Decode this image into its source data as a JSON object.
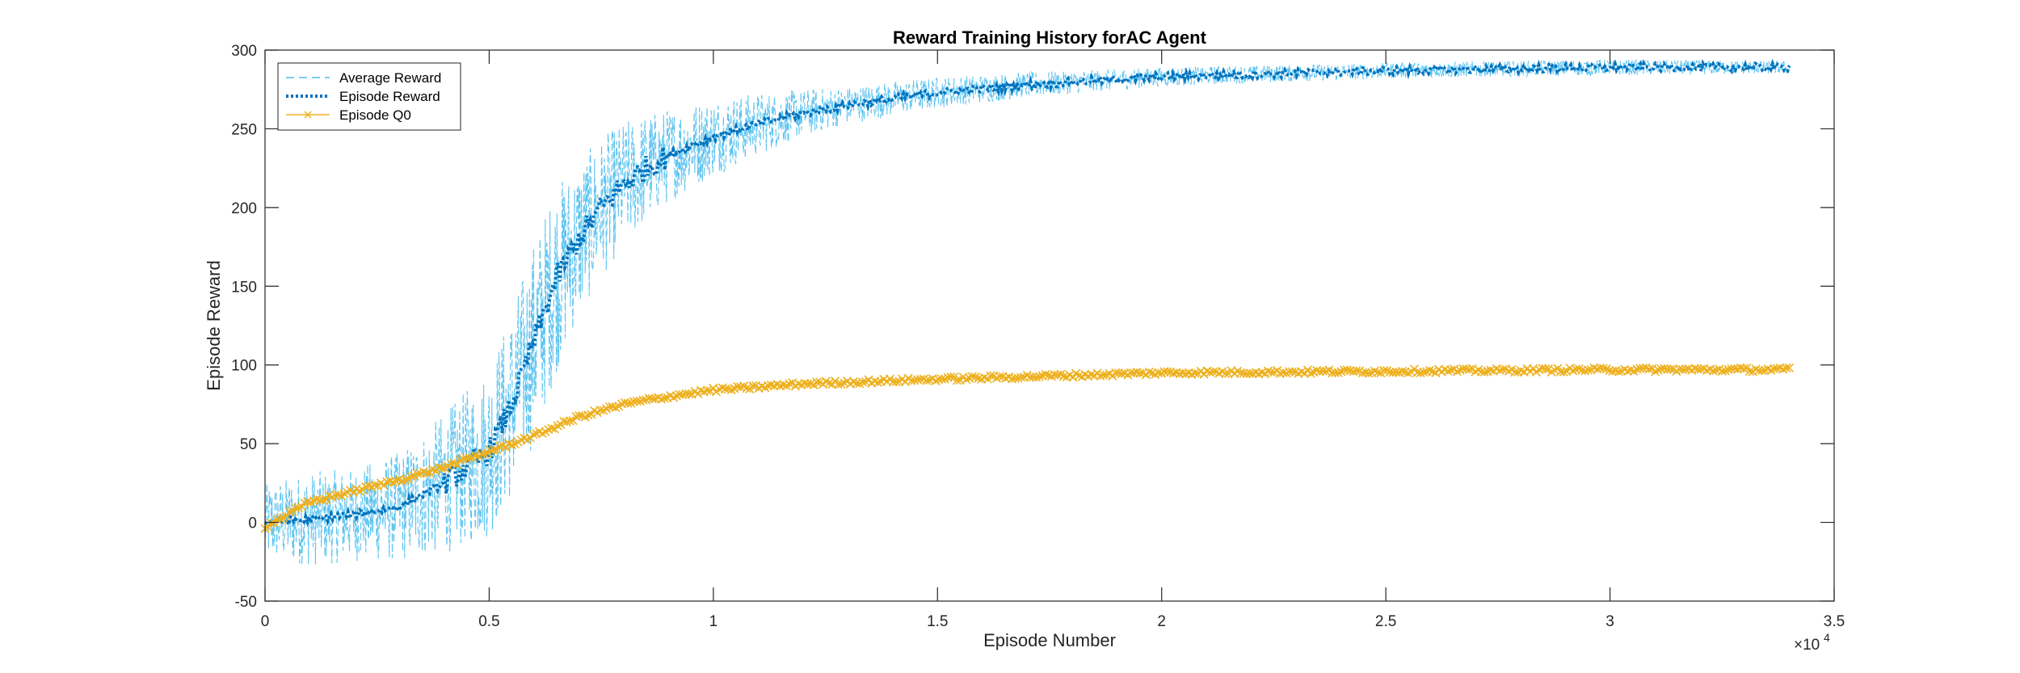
{
  "chart_data": {
    "type": "line",
    "title": "Reward Training History forAC Agent",
    "xlabel": "Episode Number",
    "ylabel": "Episode Reward",
    "x_exponent_label": "×10",
    "x_exponent_power": "4",
    "xlim": [
      0,
      35000
    ],
    "ylim": [
      -50,
      300
    ],
    "xticks": [
      0,
      5000,
      10000,
      15000,
      20000,
      25000,
      30000,
      35000
    ],
    "xtick_labels": [
      "0",
      "0.5",
      "1",
      "1.5",
      "2",
      "2.5",
      "3",
      "3.5"
    ],
    "yticks": [
      -50,
      0,
      50,
      100,
      150,
      200,
      250,
      300
    ],
    "ytick_labels": [
      "-50",
      "0",
      "50",
      "100",
      "150",
      "200",
      "250",
      "300"
    ],
    "grid": false,
    "legend_position": "top-left",
    "series": [
      {
        "name": "Average Reward",
        "color": "#4DBEEE",
        "style": "dashed",
        "x": [
          0,
          1000,
          2000,
          3000,
          4000,
          5000,
          5500,
          6000,
          6500,
          7000,
          7500,
          8000,
          8500,
          9000,
          10000,
          11000,
          12000,
          13000,
          15000,
          17000,
          20000,
          25000,
          30000,
          34000
        ],
        "values": [
          0,
          2,
          5,
          10,
          25,
          45,
          75,
          115,
          155,
          180,
          200,
          215,
          225,
          233,
          245,
          253,
          260,
          265,
          273,
          278,
          283,
          287,
          289,
          289
        ],
        "noise_amplitude": [
          25,
          30,
          30,
          35,
          45,
          55,
          60,
          65,
          60,
          50,
          45,
          40,
          35,
          30,
          25,
          20,
          15,
          12,
          10,
          8,
          6,
          5,
          5,
          4
        ]
      },
      {
        "name": "Episode Reward",
        "color": "#0072BD",
        "style": "dotted",
        "x": [
          0,
          1000,
          2000,
          3000,
          4000,
          5000,
          5500,
          6000,
          6500,
          7000,
          7500,
          8000,
          8500,
          9000,
          10000,
          11000,
          12000,
          13000,
          15000,
          17000,
          20000,
          25000,
          30000,
          34000
        ],
        "values": [
          0,
          2,
          5,
          10,
          25,
          45,
          75,
          115,
          155,
          180,
          200,
          215,
          225,
          233,
          245,
          253,
          260,
          265,
          273,
          278,
          283,
          287,
          289,
          289
        ]
      },
      {
        "name": "Episode Q0",
        "color": "#EDB120",
        "style": "solid-x",
        "x": [
          0,
          500,
          1000,
          2000,
          3000,
          4000,
          5000,
          6000,
          7000,
          8000,
          9000,
          10000,
          12000,
          15000,
          20000,
          25000,
          30000,
          34000
        ],
        "values": [
          -3,
          5,
          13,
          20,
          27,
          35,
          45,
          55,
          67,
          75,
          80,
          84,
          88,
          91,
          95,
          96,
          97,
          97
        ]
      }
    ]
  }
}
